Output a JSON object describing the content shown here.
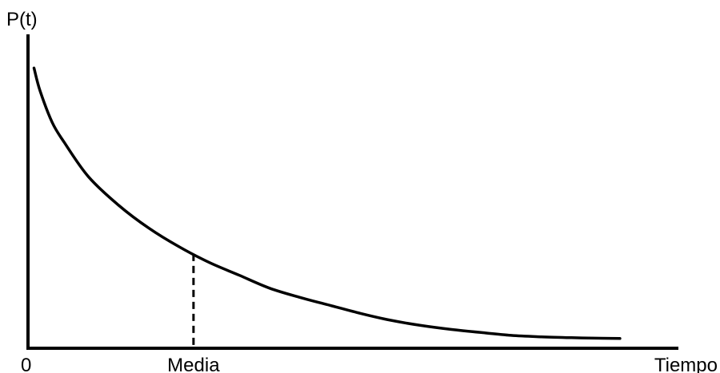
{
  "chart_data": {
    "type": "line",
    "title": "",
    "ylabel": "P(t)",
    "xlabel": "Tiempo",
    "origin_label": "0",
    "marker_label": "Media",
    "xlim": [
      0,
      1
    ],
    "ylim": [
      0,
      1
    ],
    "grid": false,
    "curve": {
      "x": [
        0.01,
        0.02,
        0.04,
        0.06,
        0.1,
        0.15,
        0.2,
        0.25,
        0.3,
        0.35,
        0.4,
        0.45,
        0.5,
        0.55,
        0.6,
        0.65,
        0.7,
        0.75,
        0.8,
        0.85,
        0.9,
        0.95,
        0.98
      ],
      "y": [
        0.98,
        0.9,
        0.79,
        0.72,
        0.6,
        0.5,
        0.42,
        0.355,
        0.3,
        0.255,
        0.21,
        0.178,
        0.15,
        0.122,
        0.098,
        0.08,
        0.066,
        0.055,
        0.045,
        0.04,
        0.037,
        0.035,
        0.034
      ]
    },
    "mean_marker": {
      "x": 0.274,
      "y": 0.33
    },
    "colors": {
      "line": "#000000",
      "background": "#ffffff"
    }
  }
}
